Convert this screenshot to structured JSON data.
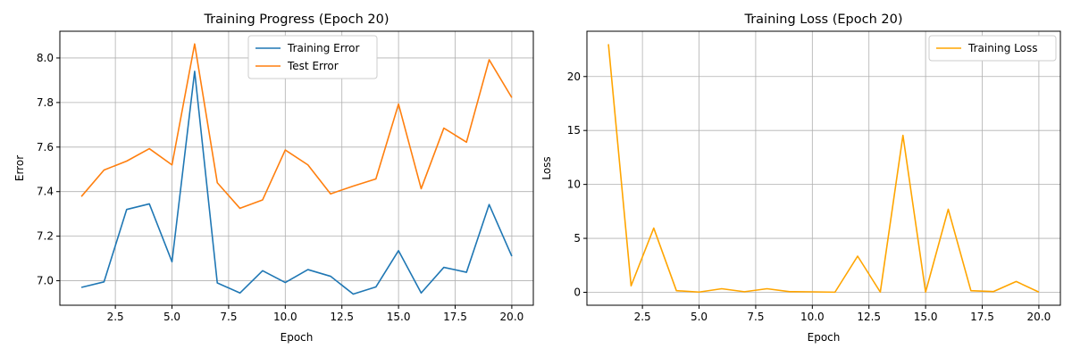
{
  "chart_data": [
    {
      "type": "line",
      "title": "Training Progress (Epoch 20)",
      "xlabel": "Epoch",
      "ylabel": "Error",
      "xlim": [
        0.05,
        20.95
      ],
      "ylim": [
        6.89,
        8.12
      ],
      "xticks": [
        2.5,
        5.0,
        7.5,
        10.0,
        12.5,
        15.0,
        17.5,
        20.0
      ],
      "xtick_labels": [
        "2.5",
        "5.0",
        "7.5",
        "10.0",
        "12.5",
        "15.0",
        "17.5",
        "20.0"
      ],
      "yticks": [
        7.0,
        7.2,
        7.4,
        7.6,
        7.8,
        8.0
      ],
      "ytick_labels": [
        "7.0",
        "7.2",
        "7.4",
        "7.6",
        "7.8",
        "8.0"
      ],
      "grid": true,
      "legend": "upper center",
      "x": [
        1,
        2,
        3,
        4,
        5,
        6,
        7,
        8,
        9,
        10,
        11,
        12,
        13,
        14,
        15,
        16,
        17,
        18,
        19,
        20
      ],
      "series": [
        {
          "name": "Training Error",
          "color": "#1f77b4",
          "values": [
            6.97,
            6.995,
            7.32,
            7.345,
            7.085,
            7.94,
            6.99,
            6.945,
            7.045,
            6.992,
            7.05,
            7.02,
            6.94,
            6.972,
            7.135,
            6.945,
            7.06,
            7.038,
            7.342,
            7.11
          ]
        },
        {
          "name": "Test Error",
          "color": "#ff7f0e",
          "values": [
            7.378,
            7.497,
            7.537,
            7.593,
            7.52,
            8.063,
            7.44,
            7.325,
            7.363,
            7.587,
            7.52,
            7.39,
            7.425,
            7.457,
            7.793,
            7.413,
            7.685,
            7.622,
            7.992,
            7.822
          ]
        }
      ]
    },
    {
      "type": "line",
      "title": "Training Loss (Epoch 20)",
      "xlabel": "Epoch",
      "ylabel": "Loss",
      "xlim": [
        0.05,
        20.95
      ],
      "ylim": [
        -1.2,
        24.2
      ],
      "xticks": [
        2.5,
        5.0,
        7.5,
        10.0,
        12.5,
        15.0,
        17.5,
        20.0
      ],
      "xtick_labels": [
        "2.5",
        "5.0",
        "7.5",
        "10.0",
        "12.5",
        "15.0",
        "17.5",
        "20.0"
      ],
      "yticks": [
        0,
        5,
        10,
        15,
        20
      ],
      "ytick_labels": [
        "0",
        "5",
        "10",
        "15",
        "20"
      ],
      "grid": true,
      "legend": "upper right",
      "x": [
        1,
        2,
        3,
        4,
        5,
        6,
        7,
        8,
        9,
        10,
        11,
        12,
        13,
        14,
        15,
        16,
        17,
        18,
        19,
        20
      ],
      "series": [
        {
          "name": "Training Loss",
          "color": "#ffa500",
          "values": [
            23.0,
            0.6,
            5.95,
            0.15,
            0.02,
            0.33,
            0.05,
            0.33,
            0.06,
            0.04,
            0.01,
            3.35,
            0.02,
            14.55,
            0.02,
            7.7,
            0.15,
            0.07,
            1.0,
            0.02
          ]
        }
      ]
    }
  ]
}
